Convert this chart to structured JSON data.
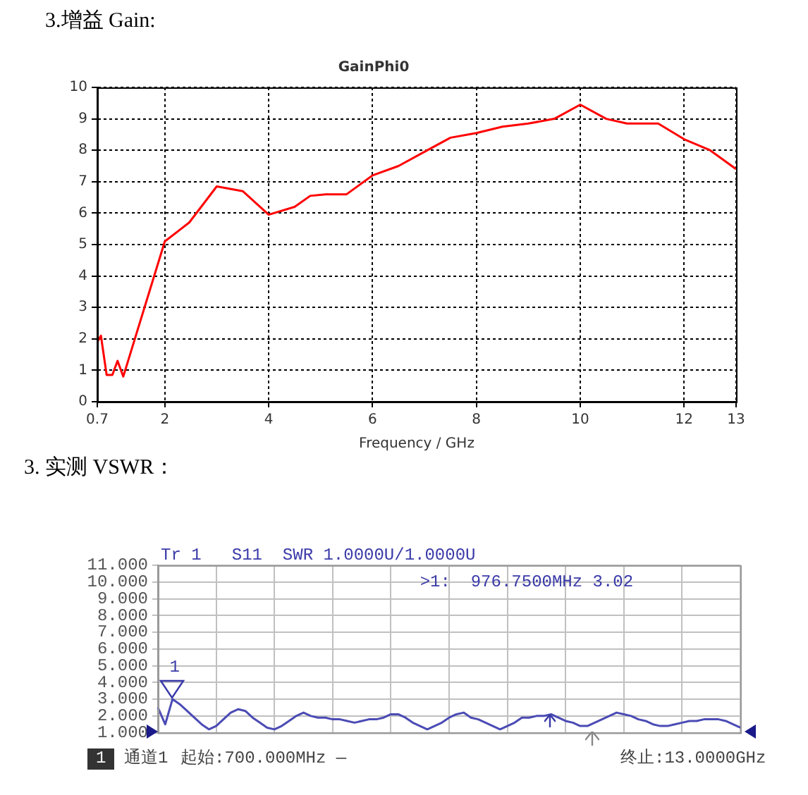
{
  "chart_data": [
    {
      "type": "line",
      "title": "GainPhi0",
      "xlabel": "Frequency / GHz",
      "color": "#ff0000",
      "marker": "none",
      "line_style": "solid",
      "grid": true,
      "legend": false,
      "x": [
        0.7,
        0.77,
        0.88,
        0.99,
        1.09,
        1.2,
        2,
        2.47,
        3,
        3.5,
        4,
        4.5,
        4.8,
        5.1,
        5.5,
        6,
        6.5,
        7,
        7.5,
        8,
        8.5,
        9,
        9.5,
        10,
        10.5,
        10.9,
        11.5,
        12,
        12.5,
        13
      ],
      "values": [
        1.9,
        2.1,
        0.85,
        0.85,
        1.3,
        0.8,
        5.1,
        5.7,
        6.85,
        6.7,
        5.95,
        6.2,
        6.55,
        6.6,
        6.6,
        7.2,
        7.5,
        7.95,
        8.4,
        8.55,
        8.75,
        8.85,
        9.0,
        9.45,
        9.0,
        8.85,
        8.85,
        8.35,
        8.0,
        7.4
      ],
      "xlim": [
        0.7,
        13
      ],
      "xticks": [
        0.7,
        2,
        4,
        6,
        8,
        10,
        12,
        13
      ],
      "ylim": [
        0,
        10
      ],
      "yticks": [
        0,
        1,
        2,
        3,
        4,
        5,
        6,
        7,
        8,
        9,
        10
      ],
      "annotations": [
        "3.增益  Gain:"
      ]
    },
    {
      "type": "line",
      "title": "Tr 1   S11  SWR 1.0000U/1.0000U",
      "color": "#4b4bb5",
      "marker": "none",
      "line_style": "solid",
      "grid": true,
      "legend": false,
      "tick_labels": "y",
      "categories": [
        null,
        null,
        null,
        null,
        null,
        null,
        null,
        null,
        null,
        null,
        null,
        null,
        null,
        null,
        null,
        null,
        null,
        null,
        null,
        null,
        null,
        null,
        null,
        null,
        null,
        null,
        null,
        null,
        null,
        null,
        null,
        null,
        null,
        null,
        null,
        null,
        null,
        null,
        null,
        null,
        null,
        null,
        null,
        null,
        null,
        null,
        null,
        null,
        null,
        null,
        null,
        null,
        null,
        null,
        null,
        null,
        null,
        null,
        null,
        null,
        null,
        null,
        null,
        null,
        null,
        null,
        null,
        null,
        null,
        null,
        null,
        null,
        null,
        null,
        null,
        null,
        null,
        null,
        null,
        null,
        null
      ],
      "values": [
        2.5,
        1.5,
        3.0,
        2.7,
        2.3,
        1.9,
        1.5,
        1.2,
        1.4,
        1.8,
        2.2,
        2.4,
        2.3,
        1.9,
        1.6,
        1.3,
        1.2,
        1.4,
        1.7,
        2.0,
        2.2,
        2.0,
        1.9,
        1.9,
        1.8,
        1.8,
        1.7,
        1.6,
        1.7,
        1.8,
        1.8,
        1.9,
        2.1,
        2.1,
        1.9,
        1.6,
        1.4,
        1.2,
        1.4,
        1.6,
        1.9,
        2.1,
        2.2,
        1.9,
        1.8,
        1.6,
        1.4,
        1.2,
        1.4,
        1.6,
        1.9,
        1.9,
        2.0,
        2.0,
        2.1,
        1.9,
        1.7,
        1.6,
        1.4,
        1.4,
        1.6,
        1.8,
        2.0,
        2.2,
        2.1,
        2.0,
        1.8,
        1.7,
        1.5,
        1.4,
        1.4,
        1.5,
        1.6,
        1.7,
        1.7,
        1.8,
        1.8,
        1.8,
        1.7,
        1.5,
        1.3
      ],
      "ylim": [
        1,
        11
      ],
      "yticks": [
        {
          "value": 1,
          "label": "1.000"
        },
        {
          "value": 2,
          "label": "2.000"
        },
        {
          "value": 3,
          "label": "3.000"
        },
        {
          "value": 4,
          "label": "4.000"
        },
        {
          "value": 5,
          "label": "5.000"
        },
        {
          "value": 6,
          "label": "6.000"
        },
        {
          "value": 7,
          "label": "7.000"
        },
        {
          "value": 8,
          "label": "8.000"
        },
        {
          "value": 9,
          "label": "9.000"
        },
        {
          "value": 10,
          "label": "10.000"
        },
        {
          "value": 11,
          "label": "11.000"
        }
      ],
      "annotations": [
        "3. 实测 VSWR：",
        "1",
        ">1:  976.7500MHz 3.02",
        "1",
        "通道1",
        "起始:700.000MHz —",
        "终止:13.0000GHz"
      ]
    }
  ]
}
